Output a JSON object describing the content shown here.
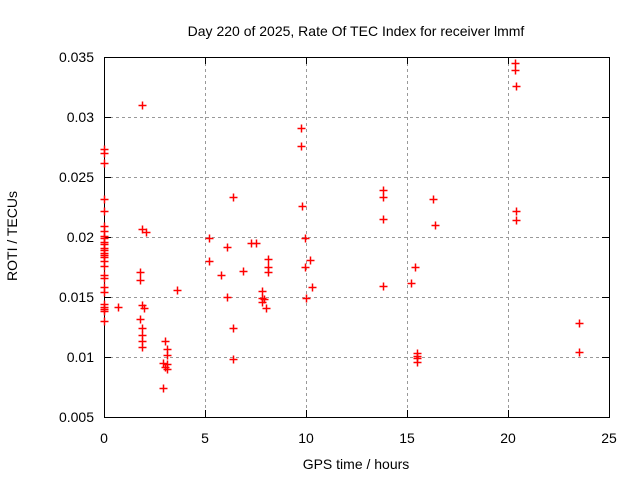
{
  "window": {
    "background": "#ffffff",
    "foreground": "#000000",
    "grid_color": "#999999",
    "marker_color": "#ff0000"
  },
  "chart_data": {
    "type": "scatter",
    "title": "Day 220 of 2025, Rate Of TEC Index for receiver lmmf",
    "xlabel": "GPS time / hours",
    "ylabel": "ROTI / TECUs",
    "xlim": [
      0,
      25
    ],
    "ylim": [
      0.005,
      0.035
    ],
    "xticks": {
      "values": [
        0,
        5,
        10,
        15,
        20,
        25
      ],
      "labels": [
        "0",
        "5",
        "10",
        "15",
        "20",
        "25"
      ]
    },
    "yticks": {
      "values": [
        0.005,
        0.01,
        0.015,
        0.02,
        0.025,
        0.03,
        0.035
      ],
      "labels": [
        "0.005",
        "0.01",
        "0.015",
        "0.02",
        "0.025",
        "0.03",
        "0.035"
      ]
    },
    "grid": true,
    "legend_position": "none",
    "marker": "plus",
    "series": [
      {
        "name": "ROTI",
        "color": "#ff0000",
        "points": [
          [
            0,
            0.0273
          ],
          [
            0,
            0.027
          ],
          [
            0,
            0.0262
          ],
          [
            0,
            0.0232
          ],
          [
            0,
            0.0222
          ],
          [
            0,
            0.0209
          ],
          [
            0,
            0.0205
          ],
          [
            0,
            0.0201
          ],
          [
            0,
            0.0199
          ],
          [
            0,
            0.0196
          ],
          [
            0,
            0.0194
          ],
          [
            0,
            0.0191
          ],
          [
            0,
            0.0189
          ],
          [
            0,
            0.0187
          ],
          [
            0,
            0.0185
          ],
          [
            0,
            0.0183
          ],
          [
            0,
            0.018
          ],
          [
            0,
            0.0176
          ],
          [
            0,
            0.0168
          ],
          [
            0,
            0.0166
          ],
          [
            0,
            0.0158
          ],
          [
            0,
            0.0154
          ],
          [
            0,
            0.0144
          ],
          [
            0,
            0.0142
          ],
          [
            0,
            0.014
          ],
          [
            0,
            0.0138
          ],
          [
            0,
            0.013
          ],
          [
            0.7,
            0.0142
          ],
          [
            1.9,
            0.031
          ],
          [
            1.9,
            0.0207
          ],
          [
            2.1,
            0.0204
          ],
          [
            1.8,
            0.0171
          ],
          [
            1.8,
            0.0164
          ],
          [
            1.9,
            0.0143
          ],
          [
            2.0,
            0.0141
          ],
          [
            1.8,
            0.0132
          ],
          [
            1.9,
            0.0124
          ],
          [
            1.9,
            0.0118
          ],
          [
            1.9,
            0.0113
          ],
          [
            1.9,
            0.0108
          ],
          [
            3.0,
            0.0113
          ],
          [
            3.1,
            0.0107
          ],
          [
            3.1,
            0.0102
          ],
          [
            2.9,
            0.0095
          ],
          [
            3.1,
            0.0094
          ],
          [
            3.0,
            0.0092
          ],
          [
            3.1,
            0.009
          ],
          [
            2.9,
            0.0074
          ],
          [
            3.6,
            0.0156
          ],
          [
            5.2,
            0.0199
          ],
          [
            5.2,
            0.018
          ],
          [
            5.8,
            0.0168
          ],
          [
            6.1,
            0.0192
          ],
          [
            6.1,
            0.015
          ],
          [
            6.4,
            0.0233
          ],
          [
            6.4,
            0.0124
          ],
          [
            6.4,
            0.0098
          ],
          [
            6.9,
            0.0172
          ],
          [
            7.3,
            0.0195
          ],
          [
            7.5,
            0.0195
          ],
          [
            7.8,
            0.0155
          ],
          [
            7.8,
            0.0149
          ],
          [
            7.9,
            0.0148
          ],
          [
            7.8,
            0.0146
          ],
          [
            8.0,
            0.0141
          ],
          [
            8.1,
            0.0182
          ],
          [
            8.1,
            0.0175
          ],
          [
            8.1,
            0.0171
          ],
          [
            9.75,
            0.0291
          ],
          [
            9.75,
            0.0276
          ],
          [
            9.8,
            0.0226
          ],
          [
            9.95,
            0.0199
          ],
          [
            9.95,
            0.0175
          ],
          [
            10.0,
            0.0149
          ],
          [
            10.2,
            0.0181
          ],
          [
            10.3,
            0.0158
          ],
          [
            13.8,
            0.0239
          ],
          [
            13.8,
            0.0233
          ],
          [
            13.8,
            0.0215
          ],
          [
            13.8,
            0.0159
          ],
          [
            15.2,
            0.0162
          ],
          [
            15.4,
            0.0175
          ],
          [
            15.5,
            0.0103
          ],
          [
            15.5,
            0.0101
          ],
          [
            15.5,
            0.0099
          ],
          [
            15.5,
            0.0096
          ],
          [
            16.3,
            0.0232
          ],
          [
            16.4,
            0.021
          ],
          [
            20.35,
            0.0345
          ],
          [
            20.35,
            0.0339
          ],
          [
            20.4,
            0.0326
          ],
          [
            20.4,
            0.0222
          ],
          [
            20.4,
            0.0214
          ],
          [
            23.5,
            0.0128
          ],
          [
            23.5,
            0.0104
          ]
        ]
      }
    ]
  }
}
